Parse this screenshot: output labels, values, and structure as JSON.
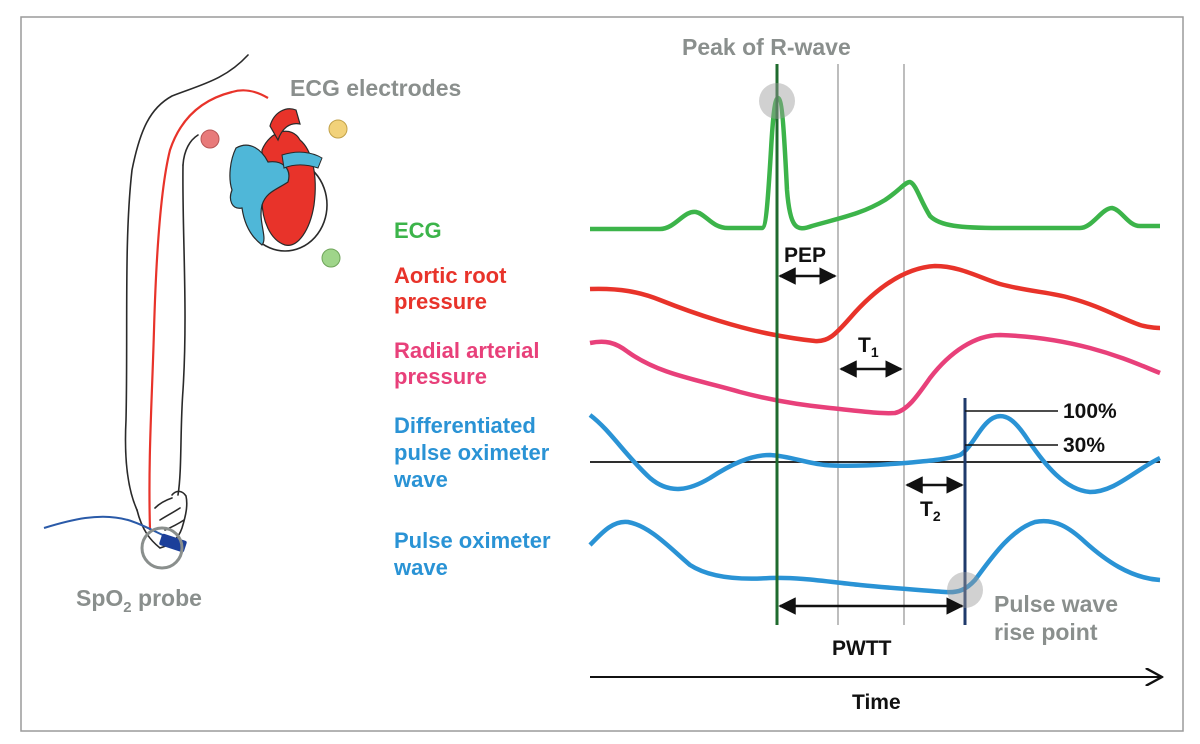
{
  "figure": {
    "labels": {
      "peak_r_wave": "Peak of R-wave",
      "ecg_electrodes": "ECG electrodes",
      "spo2_probe_prefix": "SpO",
      "spo2_probe_sub": "2",
      "spo2_probe_suffix": " probe",
      "pulse_rise_line1": "Pulse wave",
      "pulse_rise_line2": "rise point",
      "pep": "PEP",
      "t1_main": "T",
      "t1_sub": "1",
      "t2_main": "T",
      "t2_sub": "2",
      "pwtt": "PWTT",
      "pct_100": "100%",
      "pct_30": "30%",
      "time": "Time"
    },
    "signals": [
      {
        "id": "ecg",
        "lines": [
          "ECG"
        ],
        "color": "#3cb44a"
      },
      {
        "id": "aortic",
        "lines": [
          "Aortic root",
          "pressure"
        ],
        "color": "#e8332a"
      },
      {
        "id": "radial",
        "lines": [
          "Radial arterial",
          "pressure"
        ],
        "color": "#e8407a"
      },
      {
        "id": "diff",
        "lines": [
          "Differentiated",
          "pulse oximeter",
          "wave"
        ],
        "color": "#2a93d5"
      },
      {
        "id": "pulse",
        "lines": [
          "Pulse oximeter",
          "wave"
        ],
        "color": "#2a93d5"
      }
    ],
    "colors": {
      "gray_label": "#8a8f8d",
      "r_wave_line": "#1f6b2e",
      "rise_line": "#1f3a6b",
      "electrode_red": "#e87a7a",
      "electrode_yellow": "#f2d27a",
      "electrode_green": "#9fd58a",
      "heart_red": "#e8332a",
      "heart_blue": "#4fb7d8"
    }
  }
}
